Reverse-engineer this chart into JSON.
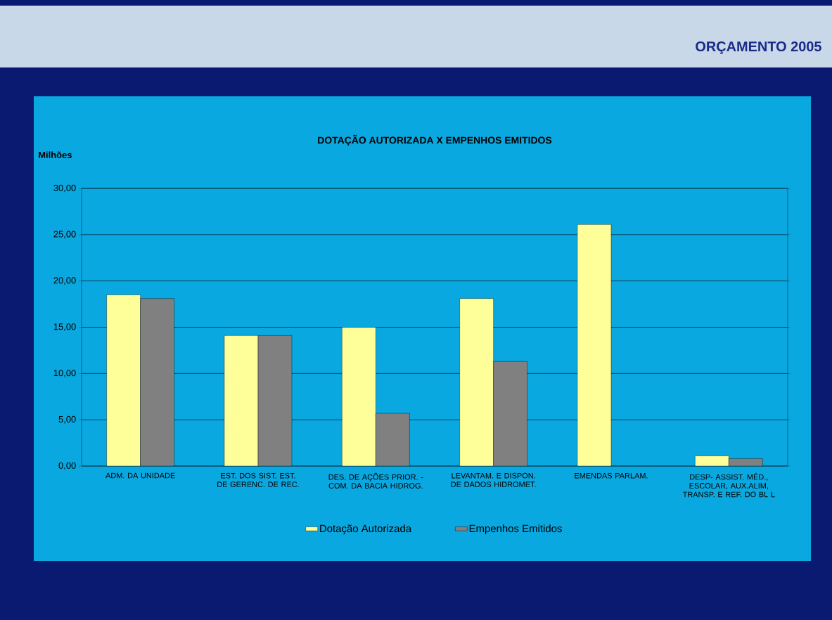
{
  "chart_data": {
    "type": "bar",
    "title": "DOTAÇÃO AUTORIZADA X EMPENHOS EMITIDOS",
    "ylabel": "Milhões",
    "annotations": [
      "ORÇAMENTO 2005"
    ],
    "categories": [
      "ADM. DA UNIDADE",
      "EST. DOS SIST. EST. DE GERENC. DE REC.",
      "DES. DE AÇÕES PRIOR. - COM. DA BACIA HIDROG.",
      "LEVANTAM. E DISPON. DE DADOS HIDROMET.",
      "EMENDAS PARLAM.",
      "DESP- ASSIST. MÉD., ESCOLAR, AUX.ALIM, TRANSP. E REF. DO BL L"
    ],
    "series": [
      {
        "name": "Dotação Autorizada",
        "color": "#ffff99",
        "values": [
          18.5,
          14.1,
          15.0,
          18.1,
          26.1,
          1.1
        ]
      },
      {
        "name": "Empenhos Emitidos",
        "color": "#808080",
        "values": [
          18.1,
          14.1,
          5.7,
          11.3,
          null,
          0.8
        ]
      }
    ],
    "ylim": [
      0,
      30
    ],
    "yticks": [
      {
        "value": 0,
        "label": "0,00"
      },
      {
        "value": 5,
        "label": "5,00"
      },
      {
        "value": 10,
        "label": "10,00"
      },
      {
        "value": 15,
        "label": "15,00"
      },
      {
        "value": 20,
        "label": "20,00"
      },
      {
        "value": 25,
        "label": "25,00"
      },
      {
        "value": 30,
        "label": "30,00"
      }
    ],
    "grid": "y",
    "legend": "bottom"
  }
}
